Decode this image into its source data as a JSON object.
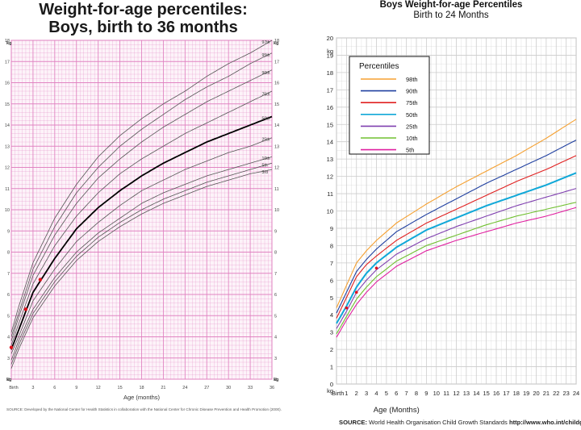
{
  "chart_data": [
    {
      "type": "line",
      "title": "Weight-for-age percentiles:",
      "subtitle": "Boys, birth to 36 months",
      "xlabel": "Age (months)",
      "ylabel": "kg",
      "xlim": [
        0,
        36
      ],
      "ylim": [
        2,
        18
      ],
      "x_tick_labels": [
        "Birth",
        "3",
        "6",
        "9",
        "12",
        "15",
        "18",
        "21",
        "24",
        "27",
        "30",
        "33",
        "36"
      ],
      "y_tick_labels": [
        "2",
        "3",
        "4",
        "5",
        "6",
        "7",
        "8",
        "9",
        "10",
        "11",
        "12",
        "13",
        "14",
        "15",
        "16",
        "17",
        "18"
      ],
      "grid": true,
      "emphasis_color": "#000000",
      "grid_color": "#e080c0",
      "curve_color": "#555555",
      "x": [
        0,
        1,
        3,
        6,
        9,
        12,
        15,
        18,
        21,
        24,
        27,
        30,
        33,
        36
      ],
      "series": [
        {
          "name": "97th",
          "values": [
            4.2,
            5.4,
            7.5,
            9.6,
            11.2,
            12.5,
            13.5,
            14.3,
            15.0,
            15.6,
            16.3,
            16.9,
            17.4,
            18.0
          ]
        },
        {
          "name": "95th",
          "values": [
            4.0,
            5.1,
            7.2,
            9.2,
            10.8,
            12.0,
            13.0,
            13.8,
            14.5,
            15.2,
            15.8,
            16.3,
            16.9,
            17.4
          ]
        },
        {
          "name": "90th",
          "values": [
            3.8,
            4.9,
            6.9,
            8.8,
            10.3,
            11.5,
            12.4,
            13.2,
            13.9,
            14.5,
            15.1,
            15.6,
            16.1,
            16.6
          ]
        },
        {
          "name": "75th",
          "values": [
            3.6,
            4.6,
            6.5,
            8.3,
            9.7,
            10.8,
            11.7,
            12.4,
            13.0,
            13.6,
            14.1,
            14.6,
            15.1,
            15.6
          ]
        },
        {
          "name": "50th",
          "values": [
            3.4,
            4.3,
            6.1,
            7.7,
            9.1,
            10.1,
            10.9,
            11.6,
            12.2,
            12.7,
            13.2,
            13.6,
            14.0,
            14.4
          ]
        },
        {
          "name": "25th",
          "values": [
            3.2,
            4.0,
            5.7,
            7.2,
            8.5,
            9.4,
            10.2,
            10.9,
            11.4,
            11.9,
            12.3,
            12.7,
            13.0,
            13.4
          ]
        },
        {
          "name": "10th",
          "values": [
            2.9,
            3.8,
            5.3,
            6.8,
            8.0,
            8.9,
            9.6,
            10.3,
            10.8,
            11.2,
            11.6,
            11.9,
            12.2,
            12.5
          ]
        },
        {
          "name": "5th",
          "values": [
            2.7,
            3.6,
            5.1,
            6.6,
            7.8,
            8.7,
            9.4,
            10.0,
            10.5,
            10.9,
            11.3,
            11.6,
            11.9,
            12.2
          ]
        },
        {
          "name": "3rd",
          "values": [
            2.5,
            3.4,
            4.9,
            6.4,
            7.6,
            8.5,
            9.2,
            9.8,
            10.3,
            10.7,
            11.1,
            11.4,
            11.7,
            11.9
          ]
        }
      ],
      "emphasized_series": "50th",
      "marked_points": [
        {
          "x": 0,
          "y": 3.5
        },
        {
          "x": 2,
          "y": 5.3
        },
        {
          "x": 4,
          "y": 6.7
        }
      ],
      "point_color": "#e0101a",
      "source": "SOURCE: Developed by the National Center for Health Statistics in collaboration with the National Center for Chronic Disease Prevention and Health Promotion (2000)."
    },
    {
      "type": "line",
      "title": "Boys Weight-for-age Percentiles",
      "subtitle": "Birth to 24 Months",
      "xlabel": "Age (Months)",
      "ylabel": "kg",
      "xlim": [
        0,
        24
      ],
      "ylim": [
        0,
        20
      ],
      "x_tick_labels": [
        "Birth",
        "1",
        "2",
        "3",
        "4",
        "5",
        "6",
        "7",
        "8",
        "9",
        "10",
        "11",
        "12",
        "13",
        "14",
        "15",
        "16",
        "17",
        "18",
        "19",
        "20",
        "21",
        "22",
        "23",
        "24"
      ],
      "y_tick_labels": [
        "0",
        "1",
        "2",
        "3",
        "4",
        "5",
        "6",
        "7",
        "8",
        "9",
        "10",
        "11",
        "12",
        "13",
        "14",
        "15",
        "16",
        "17",
        "18",
        "19",
        "20"
      ],
      "grid": true,
      "grid_color": "#cccccc",
      "legend_title": "Percentiles",
      "legend_placement": "top-left",
      "x": [
        0,
        1,
        2,
        3,
        4,
        6,
        9,
        12,
        15,
        18,
        21,
        24
      ],
      "series": [
        {
          "name": "98th",
          "color": "#f5a030",
          "values": [
            4.4,
            5.7,
            7.0,
            7.7,
            8.3,
            9.3,
            10.4,
            11.4,
            12.3,
            13.2,
            14.2,
            15.3
          ]
        },
        {
          "name": "90th",
          "color": "#2040a0",
          "values": [
            4.1,
            5.3,
            6.5,
            7.2,
            7.8,
            8.8,
            9.8,
            10.7,
            11.6,
            12.4,
            13.2,
            14.1
          ]
        },
        {
          "name": "75th",
          "color": "#e02020",
          "values": [
            3.8,
            5.0,
            6.2,
            6.9,
            7.4,
            8.3,
            9.3,
            10.1,
            10.9,
            11.7,
            12.4,
            13.2
          ]
        },
        {
          "name": "50th",
          "color": "#10a8d8",
          "values": [
            3.5,
            4.5,
            5.6,
            6.4,
            7.0,
            7.9,
            8.9,
            9.6,
            10.3,
            10.9,
            11.5,
            12.2
          ]
        },
        {
          "name": "25th",
          "color": "#8040b0",
          "values": [
            3.2,
            4.2,
            5.3,
            6.0,
            6.6,
            7.5,
            8.4,
            9.1,
            9.7,
            10.3,
            10.8,
            11.3
          ]
        },
        {
          "name": "10th",
          "color": "#70c030",
          "values": [
            2.9,
            3.9,
            4.9,
            5.6,
            6.2,
            7.1,
            8.0,
            8.6,
            9.2,
            9.7,
            10.1,
            10.5
          ]
        },
        {
          "name": "5th",
          "color": "#e020a0",
          "values": [
            2.7,
            3.7,
            4.6,
            5.3,
            5.9,
            6.8,
            7.7,
            8.3,
            8.8,
            9.3,
            9.7,
            10.2
          ]
        }
      ],
      "emphasized_series": "50th",
      "marked_points": [
        {
          "x": 1,
          "y": 4.4
        },
        {
          "x": 2,
          "y": 5.3
        },
        {
          "x": 4,
          "y": 6.7
        }
      ],
      "point_color": "#e0101a",
      "source_label": "SOURCE:",
      "source_text": "World Health Organisation Child Growth Standards",
      "source_url": "http://www.who.int/childgrowth/en"
    }
  ]
}
